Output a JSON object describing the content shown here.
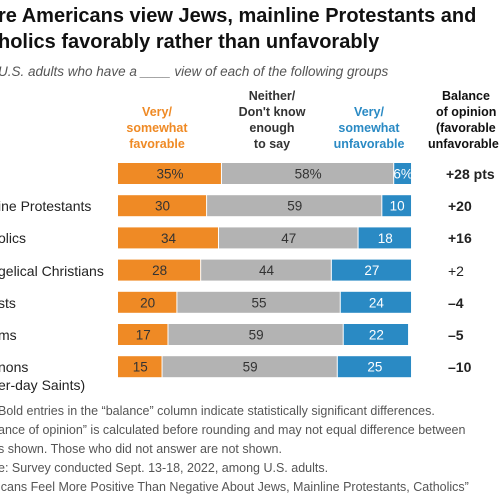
{
  "title_lines": [
    "re Americans view Jews, mainline Protestants and",
    "holics favorably rather than unfavorably"
  ],
  "subtitle": "U.S. adults who have a ____ view of each of the following groups",
  "colors": {
    "favorable": "#ef8a25",
    "neither": "#b3b3b3",
    "unfavorable": "#2a8ac4",
    "favorable_text": "#ef8a25",
    "unfavorable_text": "#2a8ac4"
  },
  "headers": {
    "favorable": [
      "Very/",
      "somewhat",
      "favorable"
    ],
    "neither": [
      "Neither/",
      "Don't know",
      "enough",
      "to say"
    ],
    "unfavorable": [
      "Very/",
      "somewhat",
      "unfavorable"
    ],
    "balance": [
      "Balance",
      "of opinion",
      "(favorable",
      "unfavorable"
    ]
  },
  "chart_data": {
    "type": "bar",
    "stacked": true,
    "orientation": "horizontal",
    "categories": [
      "",
      "ine Protestants",
      "olics",
      "gelical Christians",
      "sts",
      "ms",
      "nons"
    ],
    "category_sublabels": [
      "",
      "",
      "",
      "",
      "",
      "",
      "er-day Saints)"
    ],
    "series": [
      {
        "name": "Very/somewhat favorable",
        "values": [
          35,
          30,
          34,
          28,
          20,
          17,
          15
        ]
      },
      {
        "name": "Neither/Don't know enough to say",
        "values": [
          58,
          59,
          47,
          44,
          55,
          59,
          59
        ]
      },
      {
        "name": "Very/somewhat unfavorable",
        "values": [
          6,
          10,
          18,
          27,
          24,
          22,
          25
        ]
      }
    ],
    "value_labels": {
      "favorable": [
        "35%",
        "30",
        "34",
        "28",
        "20",
        "17",
        "15"
      ],
      "neither": [
        "58%",
        "59",
        "47",
        "44",
        "55",
        "59",
        "59"
      ],
      "unfavorable": [
        "6%",
        "10",
        "18",
        "27",
        "24",
        "22",
        "25"
      ]
    },
    "balance": [
      "+28 pts",
      "+20",
      "+16",
      "+2",
      "–4",
      "–5",
      "–10"
    ],
    "balance_significant": [
      true,
      true,
      true,
      false,
      true,
      true,
      true
    ],
    "xlim": [
      0,
      100
    ]
  },
  "notes": [
    "Bold entries in the “balance” column indicate statistically significant differences.",
    "ance of opinion” is calculated before rounding and may not equal difference between",
    "s shown. Those who did not answer are not shown.",
    "e: Survey conducted Sept. 13-18, 2022, among U.S. adults.",
    "icans Feel More Positive Than Negative About Jews, Mainline Protestants, Catholics”"
  ]
}
